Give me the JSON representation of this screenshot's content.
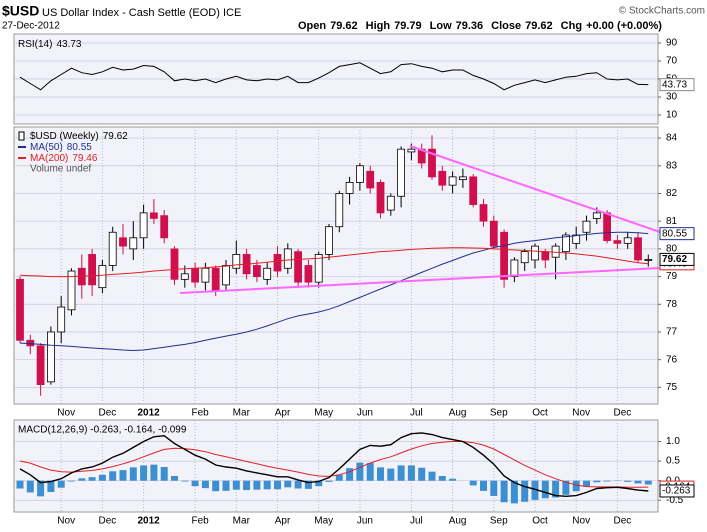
{
  "header": {
    "symbol": "$USD",
    "name": "US Dollar Index - Cash Settle (EOD) ICE",
    "date": "27-Dec-2012",
    "credit": "© StockCharts.com",
    "quote": [
      {
        "label": "Open",
        "value": "79.62"
      },
      {
        "label": "High",
        "value": "79.79"
      },
      {
        "label": "Low",
        "value": "79.36"
      },
      {
        "label": "Close",
        "value": "79.62"
      },
      {
        "label": "Chg",
        "value": "+0.00 (+0.00%)"
      }
    ]
  },
  "chart_data": [
    {
      "type": "line",
      "ylim": [
        0,
        100
      ],
      "yticks": [
        10,
        30,
        50,
        70,
        90
      ],
      "grid": true,
      "series": [
        {
          "name": "RSI(14)",
          "color": "#000000",
          "values": [
            52,
            45,
            38,
            48,
            55,
            62,
            57,
            55,
            58,
            63,
            60,
            61,
            65,
            64,
            58,
            48,
            50,
            48,
            50,
            46,
            50,
            53,
            49,
            48,
            50,
            49,
            53,
            46,
            46,
            51,
            57,
            64,
            66,
            68,
            62,
            56,
            58,
            66,
            67,
            64,
            62,
            58,
            60,
            60,
            54,
            50,
            45,
            38,
            43,
            46,
            49,
            46,
            49,
            52,
            53,
            56,
            57,
            50,
            49,
            50,
            44,
            43.73
          ]
        }
      ]
    },
    {
      "type": "candlestick",
      "ylim": [
        74.4,
        84.4
      ],
      "yticks": [
        75,
        76,
        77,
        78,
        79,
        80,
        81,
        82,
        83,
        84
      ],
      "grid": true,
      "note": "Volume undef",
      "categories": [
        null,
        null,
        null,
        null,
        "Nov",
        null,
        null,
        null,
        "Dec",
        null,
        null,
        null,
        "2012",
        null,
        null,
        null,
        null,
        "Feb",
        null,
        null,
        null,
        "Mar",
        null,
        null,
        null,
        "Apr",
        null,
        null,
        null,
        "May",
        null,
        null,
        null,
        "Jun",
        null,
        null,
        null,
        null,
        "Jul",
        null,
        null,
        null,
        "Aug",
        null,
        null,
        null,
        "Sep",
        null,
        null,
        null,
        "Oct",
        null,
        null,
        null,
        "Nov",
        null,
        null,
        null,
        "Dec",
        null,
        null,
        null
      ],
      "series": [
        {
          "name": "$USD (Weekly)",
          "up_color": "#ffffff",
          "down_color": "#d0104c",
          "open": [
            78.9,
            76.7,
            76.5,
            75.2,
            77.0,
            77.8,
            79.3,
            79.8,
            78.6,
            79.4,
            80.4,
            80.0,
            80.4,
            81.3,
            81.2,
            80.0,
            78.9,
            79.3,
            78.8,
            79.3,
            78.7,
            79.3,
            79.8,
            79.4,
            78.9,
            79.8,
            79.3,
            79.9,
            79.4,
            78.8,
            79.8,
            80.8,
            82.0,
            82.4,
            82.8,
            82.4,
            81.4,
            81.9,
            83.5,
            83.6,
            83.6,
            82.8,
            82.3,
            82.5,
            82.6,
            81.6,
            81.0,
            80.6,
            79.0,
            79.5,
            79.6,
            79.9,
            79.7,
            79.9,
            80.2,
            80.6,
            81.1,
            81.3,
            80.3,
            80.2,
            80.4,
            79.62
          ],
          "high": [
            79.0,
            76.9,
            76.6,
            77.2,
            78.3,
            79.3,
            79.8,
            80.0,
            79.6,
            80.8,
            80.9,
            81.0,
            81.6,
            81.8,
            81.4,
            80.1,
            79.4,
            79.5,
            79.5,
            79.4,
            79.6,
            80.3,
            80.0,
            79.6,
            79.5,
            80.1,
            80.2,
            80.0,
            79.6,
            79.9,
            80.9,
            82.1,
            82.6,
            83.1,
            83.0,
            82.5,
            82.0,
            83.7,
            83.8,
            83.8,
            84.1,
            83.0,
            82.8,
            82.9,
            82.7,
            81.8,
            81.2,
            80.7,
            79.7,
            80.0,
            80.2,
            80.0,
            80.2,
            80.6,
            80.8,
            81.2,
            81.5,
            81.4,
            80.5,
            80.6,
            80.6,
            79.79
          ],
          "low": [
            76.6,
            76.2,
            74.7,
            75.1,
            76.6,
            77.6,
            78.2,
            78.3,
            78.4,
            79.2,
            79.8,
            79.6,
            80.0,
            80.9,
            80.2,
            78.7,
            78.6,
            78.6,
            78.5,
            78.3,
            78.5,
            79.1,
            78.9,
            78.8,
            78.7,
            79.0,
            79.1,
            78.6,
            78.6,
            78.6,
            79.6,
            80.6,
            81.6,
            82.1,
            82.0,
            81.1,
            81.2,
            81.5,
            83.2,
            82.9,
            82.5,
            82.1,
            82.0,
            82.2,
            81.5,
            80.8,
            80.0,
            78.6,
            78.8,
            79.2,
            79.3,
            79.3,
            78.9,
            79.6,
            80.0,
            80.3,
            80.9,
            80.2,
            80.0,
            80.0,
            79.5,
            79.36
          ],
          "close": [
            76.7,
            76.5,
            75.1,
            77.0,
            77.9,
            79.2,
            78.7,
            78.7,
            79.4,
            80.6,
            80.1,
            80.4,
            81.3,
            81.1,
            80.4,
            78.9,
            79.1,
            78.8,
            79.3,
            78.5,
            79.4,
            79.8,
            79.1,
            79.0,
            79.3,
            79.2,
            80.0,
            78.8,
            78.8,
            79.8,
            80.8,
            82.0,
            82.4,
            83.0,
            82.2,
            81.3,
            81.9,
            83.6,
            83.6,
            83.1,
            82.6,
            82.3,
            82.6,
            82.6,
            81.6,
            81.0,
            80.1,
            78.9,
            79.6,
            79.9,
            80.1,
            79.6,
            80.1,
            80.5,
            80.5,
            81.0,
            81.3,
            80.3,
            80.2,
            80.4,
            79.6,
            79.62
          ]
        },
        {
          "name": "MA(50)",
          "color": "#1f2f8f",
          "values": [
            76.6,
            76.58,
            76.55,
            76.52,
            76.5,
            76.48,
            76.45,
            76.42,
            76.4,
            76.38,
            76.35,
            76.33,
            76.35,
            76.4,
            76.45,
            76.5,
            76.55,
            76.62,
            76.7,
            76.78,
            76.85,
            76.92,
            77.0,
            77.1,
            77.22,
            77.35,
            77.48,
            77.58,
            77.65,
            77.72,
            77.82,
            77.95,
            78.1,
            78.25,
            78.4,
            78.55,
            78.7,
            78.85,
            79.0,
            79.15,
            79.3,
            79.45,
            79.58,
            79.72,
            79.85,
            79.95,
            80.05,
            80.12,
            80.2,
            80.26,
            80.3,
            80.35,
            80.4,
            80.44,
            80.48,
            80.52,
            80.56,
            80.58,
            80.6,
            80.6,
            80.58,
            80.55
          ]
        },
        {
          "name": "MA(200)",
          "color": "#e02020",
          "values": [
            79.05,
            79.03,
            79.02,
            79.0,
            79.0,
            79.0,
            79.02,
            79.03,
            79.05,
            79.08,
            79.1,
            79.13,
            79.16,
            79.2,
            79.23,
            79.26,
            79.28,
            79.3,
            79.32,
            79.35,
            79.38,
            79.42,
            79.45,
            79.48,
            79.52,
            79.56,
            79.6,
            79.62,
            79.64,
            79.66,
            79.7,
            79.74,
            79.78,
            79.82,
            79.86,
            79.9,
            79.92,
            79.95,
            79.98,
            80.0,
            80.02,
            80.03,
            80.04,
            80.04,
            80.03,
            80.02,
            80.0,
            79.98,
            79.96,
            79.94,
            79.92,
            79.9,
            79.88,
            79.85,
            79.82,
            79.78,
            79.74,
            79.68,
            79.62,
            79.56,
            79.5,
            79.46
          ]
        }
      ]
    },
    {
      "type": "macd",
      "legend": "MACD(12,26,9) -0.263, -0.164, -0.099",
      "ylim": [
        -0.8,
        1.55
      ],
      "yticks": [
        {
          "value": -0.5,
          "label": "-0.5"
        },
        {
          "value": 0,
          "label": "0.0"
        },
        {
          "value": 0.5,
          "label": "0.5"
        },
        {
          "value": 1,
          "label": "1.0"
        }
      ],
      "grid": true,
      "categories": [
        null,
        null,
        null,
        null,
        "Nov",
        null,
        null,
        null,
        "Dec",
        null,
        null,
        null,
        "2012",
        null,
        null,
        null,
        null,
        "Feb",
        null,
        null,
        null,
        "Mar",
        null,
        null,
        null,
        "Apr",
        null,
        null,
        null,
        "May",
        null,
        null,
        null,
        "Jun",
        null,
        null,
        null,
        null,
        "Jul",
        null,
        null,
        null,
        "Aug",
        null,
        null,
        null,
        "Sep",
        null,
        null,
        null,
        "Oct",
        null,
        null,
        null,
        "Nov",
        null,
        null,
        null,
        "Dec",
        null,
        null,
        null
      ],
      "series": [
        {
          "kind": "bar",
          "color": "#3d8fd1",
          "values": [
            -0.2,
            -0.3,
            -0.4,
            -0.29,
            -0.18,
            -0.02,
            0.06,
            0.09,
            0.15,
            0.24,
            0.27,
            0.34,
            0.39,
            0.41,
            0.35,
            0.12,
            -0.02,
            -0.14,
            -0.19,
            -0.27,
            -0.26,
            -0.23,
            -0.24,
            -0.23,
            -0.22,
            -0.22,
            -0.17,
            -0.2,
            -0.21,
            -0.14,
            -0.03,
            0.15,
            0.32,
            0.46,
            0.45,
            0.34,
            0.31,
            0.39,
            0.39,
            0.33,
            0.23,
            0.12,
            0.05,
            0.0,
            -0.12,
            -0.26,
            -0.39,
            -0.55,
            -0.58,
            -0.54,
            -0.49,
            -0.45,
            -0.43,
            -0.36,
            -0.27,
            -0.15,
            -0.04,
            -0.02,
            -0.01,
            -0.03,
            -0.07,
            -0.099
          ]
        },
        {
          "kind": "line",
          "color": "#e02020",
          "values": [
            0.5,
            0.45,
            0.35,
            0.27,
            0.23,
            0.22,
            0.24,
            0.26,
            0.3,
            0.36,
            0.43,
            0.51,
            0.61,
            0.71,
            0.8,
            0.83,
            0.82,
            0.79,
            0.74,
            0.67,
            0.61,
            0.55,
            0.49,
            0.43,
            0.37,
            0.32,
            0.27,
            0.22,
            0.16,
            0.12,
            0.11,
            0.15,
            0.23,
            0.34,
            0.45,
            0.54,
            0.61,
            0.71,
            0.81,
            0.89,
            0.95,
            0.98,
            1.0,
            1.0,
            0.97,
            0.91,
            0.81,
            0.67,
            0.53,
            0.39,
            0.27,
            0.15,
            0.05,
            -0.04,
            -0.11,
            -0.15,
            -0.16,
            -0.16,
            -0.16,
            -0.17,
            -0.17,
            -0.164
          ]
        },
        {
          "kind": "line",
          "color": "#000000",
          "values": [
            0.3,
            0.15,
            -0.05,
            -0.02,
            0.05,
            0.2,
            0.3,
            0.35,
            0.45,
            0.6,
            0.7,
            0.85,
            1.0,
            1.12,
            1.15,
            0.95,
            0.8,
            0.65,
            0.55,
            0.4,
            0.35,
            0.32,
            0.25,
            0.2,
            0.15,
            0.1,
            0.1,
            0.02,
            -0.05,
            -0.02,
            0.08,
            0.3,
            0.55,
            0.8,
            0.9,
            0.88,
            0.92,
            1.1,
            1.2,
            1.22,
            1.18,
            1.1,
            1.05,
            1.0,
            0.85,
            0.65,
            0.42,
            0.12,
            -0.05,
            -0.15,
            -0.22,
            -0.3,
            -0.38,
            -0.4,
            -0.38,
            -0.3,
            -0.2,
            -0.18,
            -0.17,
            -0.2,
            -0.24,
            -0.263
          ]
        }
      ]
    }
  ]
}
